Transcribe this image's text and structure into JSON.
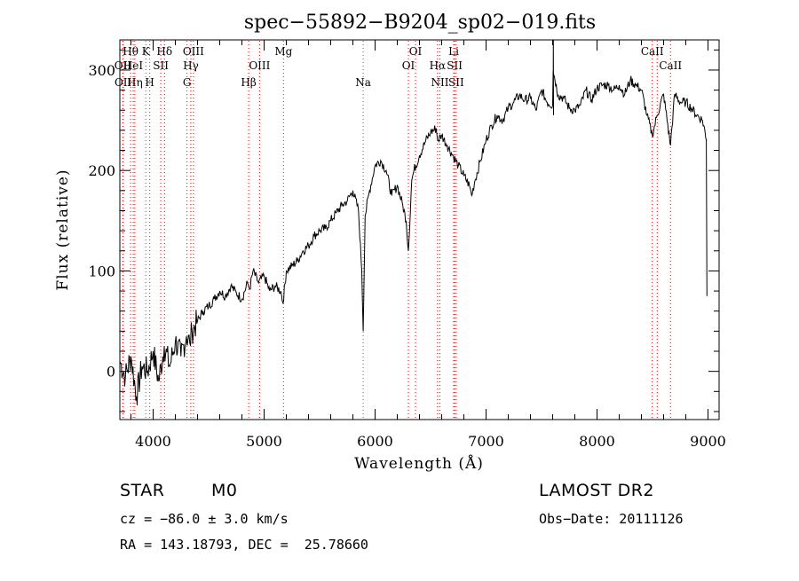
{
  "chart_data": {
    "type": "line",
    "title": "spec−55892−B9204_sp02−019.fits",
    "xlabel": "Wavelength (Å)",
    "ylabel": "Flux (relative)",
    "xlim": [
      3700,
      9100
    ],
    "ylim": [
      -48,
      330
    ],
    "xticks": [
      4000,
      5000,
      6000,
      7000,
      8000,
      9000
    ],
    "xtick_labels": [
      "4000",
      "5000",
      "6000",
      "7000",
      "8000",
      "9000"
    ],
    "yticks": [
      0,
      100,
      200,
      300
    ],
    "ytick_labels": [
      "0",
      "100",
      "200",
      "300"
    ],
    "grid": false,
    "series": [
      {
        "name": "flux",
        "x": [
          3700,
          3750,
          3800,
          3850,
          3900,
          3950,
          4000,
          4050,
          4100,
          4150,
          4200,
          4250,
          4300,
          4330,
          4350,
          4400,
          4450,
          4500,
          4550,
          4600,
          4650,
          4700,
          4750,
          4800,
          4850,
          4870,
          4900,
          4950,
          5000,
          5050,
          5100,
          5150,
          5170,
          5200,
          5250,
          5300,
          5350,
          5400,
          5450,
          5500,
          5550,
          5600,
          5650,
          5700,
          5750,
          5800,
          5850,
          5880,
          5893,
          5910,
          5950,
          6000,
          6050,
          6100,
          6150,
          6200,
          6250,
          6280,
          6300,
          6330,
          6350,
          6400,
          6450,
          6500,
          6550,
          6563,
          6600,
          6650,
          6700,
          6750,
          6800,
          6850,
          6870,
          6900,
          6950,
          7000,
          7050,
          7100,
          7150,
          7200,
          7250,
          7300,
          7350,
          7400,
          7450,
          7500,
          7550,
          7600,
          7605,
          7650,
          7700,
          7750,
          7800,
          7850,
          7900,
          7950,
          8000,
          8050,
          8100,
          8150,
          8200,
          8250,
          8300,
          8350,
          8400,
          8450,
          8498,
          8542,
          8600,
          8662,
          8700,
          8750,
          8800,
          8850,
          8900,
          8950,
          8990
        ],
        "y": [
          10,
          -5,
          15,
          -25,
          5,
          0,
          20,
          -10,
          25,
          5,
          30,
          15,
          35,
          28,
          40,
          50,
          60,
          65,
          72,
          80,
          75,
          85,
          78,
          72,
          88,
          82,
          100,
          88,
          95,
          80,
          85,
          80,
          68,
          100,
          105,
          110,
          120,
          125,
          135,
          140,
          142,
          150,
          158,
          165,
          170,
          180,
          160,
          100,
          40,
          155,
          180,
          205,
          210,
          200,
          175,
          185,
          165,
          150,
          120,
          190,
          200,
          215,
          228,
          238,
          242,
          230,
          235,
          225,
          215,
          205,
          195,
          185,
          175,
          190,
          210,
          230,
          245,
          255,
          250,
          262,
          268,
          275,
          270,
          272,
          260,
          280,
          268,
          265,
          300,
          275,
          272,
          262,
          260,
          265,
          280,
          270,
          282,
          285,
          285,
          280,
          285,
          276,
          290,
          285,
          280,
          255,
          235,
          255,
          276,
          225,
          276,
          268,
          268,
          262,
          255,
          250,
          230
        ]
      }
    ],
    "lines": [
      {
        "label": "Hθ",
        "x": 3797,
        "row": 1,
        "color": "#e60000"
      },
      {
        "label": "OII",
        "x": 3727,
        "row": 2,
        "color": "#e60000"
      },
      {
        "label": "OII",
        "x": 3729,
        "row": 3,
        "color": "#e60000"
      },
      {
        "label": "HeI",
        "x": 3820,
        "row": 2,
        "color": "#e60000"
      },
      {
        "label": "Hη",
        "x": 3835,
        "row": 3,
        "color": "#e60000"
      },
      {
        "label": "K",
        "x": 3934,
        "row": 1,
        "color": "#5a5a5a"
      },
      {
        "label": "SII",
        "x": 4069,
        "row": 2,
        "color": "#e60000"
      },
      {
        "label": "H",
        "x": 3969,
        "row": 3,
        "color": "#5a5a5a"
      },
      {
        "label": "Hδ",
        "x": 4102,
        "row": 1,
        "color": "#e60000"
      },
      {
        "label": "OIII",
        "x": 4363,
        "row": 1,
        "color": "#e60000"
      },
      {
        "label": "Hγ",
        "x": 4340,
        "row": 2,
        "color": "#e60000"
      },
      {
        "label": "G",
        "x": 4305,
        "row": 3,
        "color": "#5a5a5a"
      },
      {
        "label": "Mg",
        "x": 5175,
        "row": 1,
        "color": "#5a5a5a"
      },
      {
        "label": "OIII",
        "x": 4959,
        "row": 2,
        "color": "#e60000"
      },
      {
        "label": "Hβ",
        "x": 4861,
        "row": 3,
        "color": "#e60000"
      },
      {
        "label": "Na",
        "x": 5893,
        "row": 3,
        "color": "#5a5a5a"
      },
      {
        "label": "OI",
        "x": 6364,
        "row": 1,
        "color": "#e60000"
      },
      {
        "label": "OI",
        "x": 6300,
        "row": 2,
        "color": "#e60000"
      },
      {
        "label": "Li",
        "x": 6708,
        "row": 1,
        "color": "#e60000"
      },
      {
        "label": "Hα",
        "x": 6563,
        "row": 2,
        "color": "#e60000"
      },
      {
        "label": "SII",
        "x": 6717,
        "row": 2,
        "color": "#e60000"
      },
      {
        "label": "NII",
        "x": 6584,
        "row": 3,
        "color": "#e60000"
      },
      {
        "label": "SII",
        "x": 6731,
        "row": 3,
        "color": "#e60000"
      },
      {
        "label": "CaII",
        "x": 8498,
        "row": 1,
        "color": "#e60000"
      },
      {
        "label": "CaII",
        "x": 8662,
        "row": 2,
        "color": "#e60000"
      },
      {
        "label": "",
        "x": 8542,
        "row": 0,
        "color": "#e60000"
      }
    ]
  },
  "info": {
    "class": "STAR",
    "subclass": "M0",
    "survey": "LAMOST DR2",
    "cz": "cz = −86.0 ± 3.0 km/s",
    "obs_date": "Obs−Date: 20111126",
    "radec": "RA = 143.18793, DEC =  25.78660"
  }
}
